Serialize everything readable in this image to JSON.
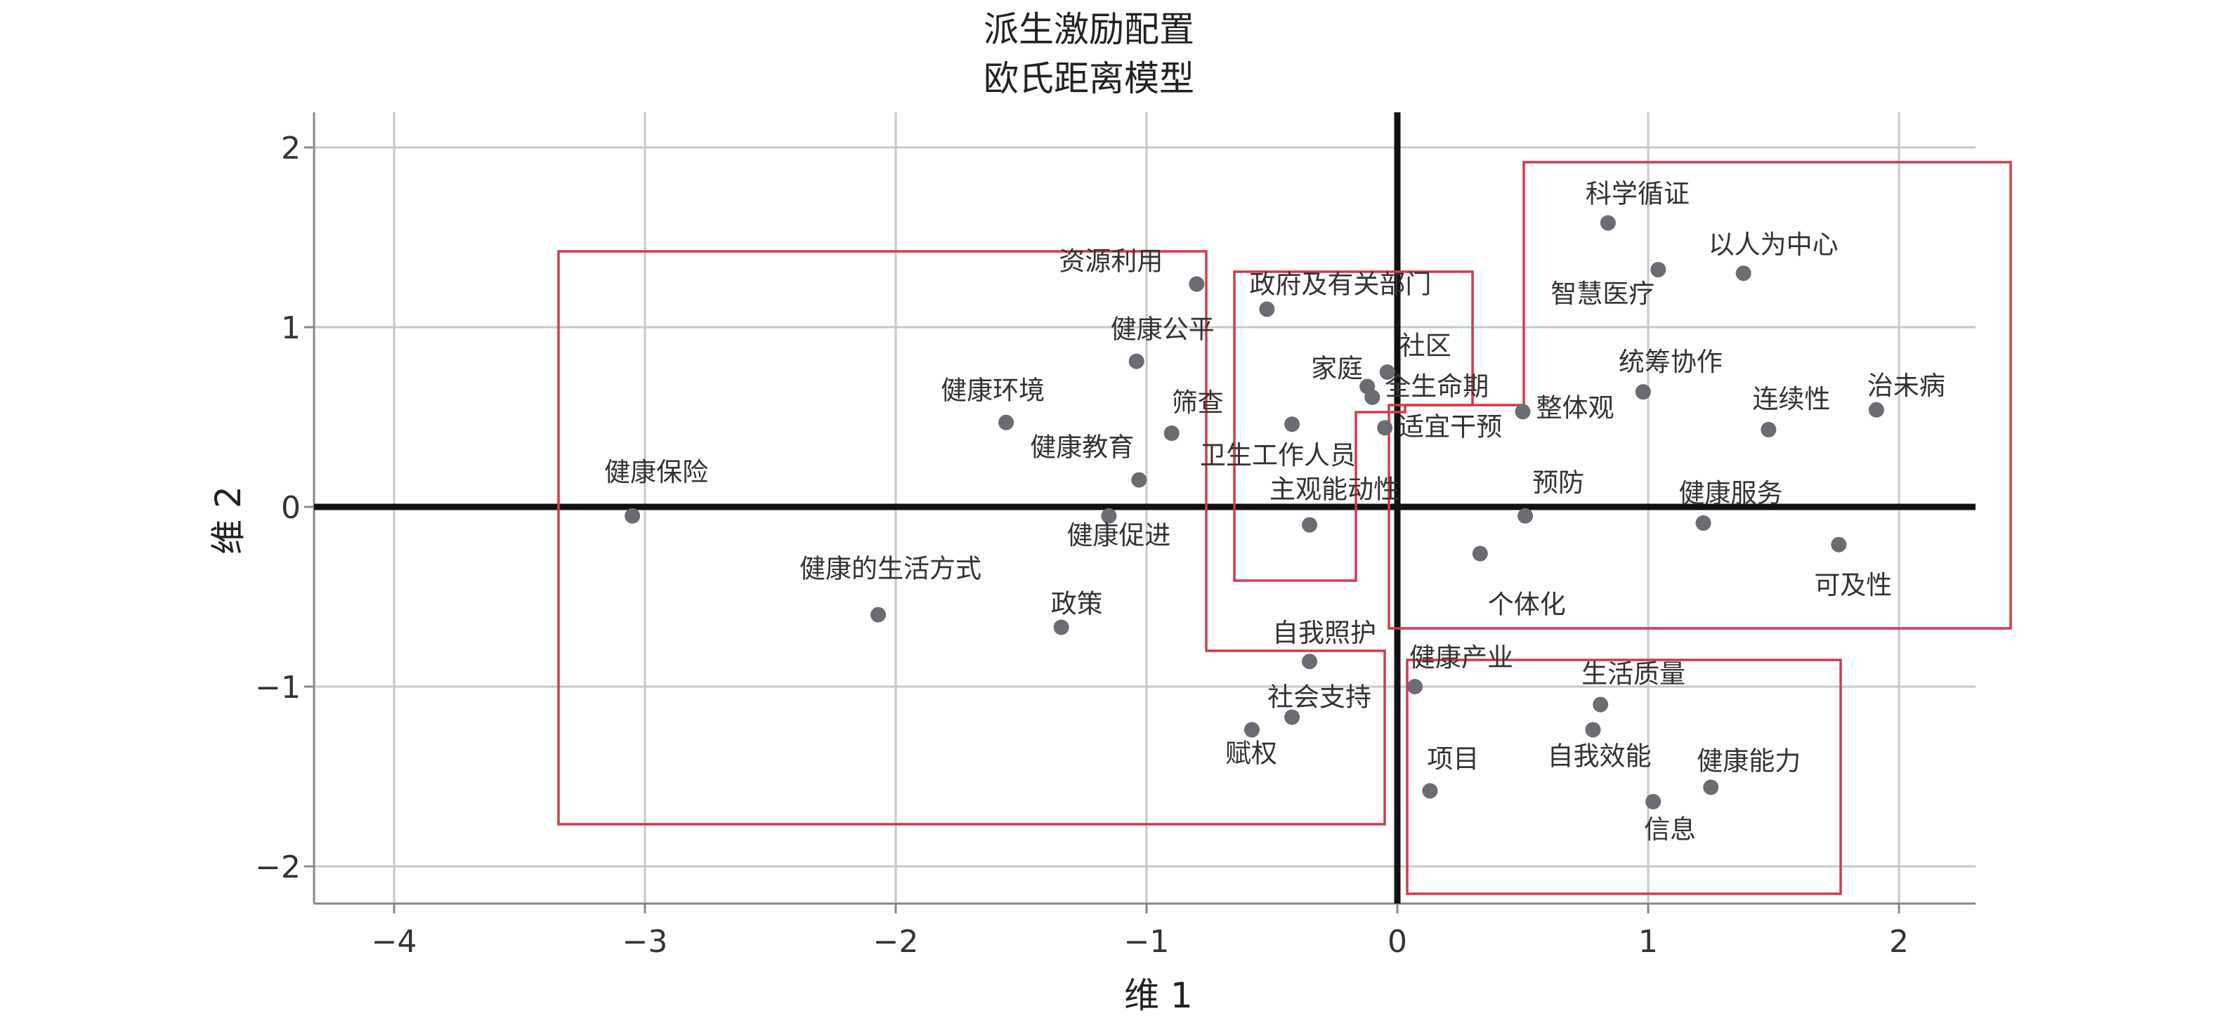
{
  "chart_data": {
    "type": "scatter",
    "title": "派生激励配置",
    "subtitle": "欧氏距离模型",
    "xlabel": "维 1",
    "ylabel": "维 2",
    "xlim": [
      -4.35,
      2.35
    ],
    "ylim": [
      -2.22,
      2.22
    ],
    "xticks": [
      -4,
      -3,
      -2,
      -1,
      0,
      1,
      2
    ],
    "yticks": [
      -2,
      -1,
      0,
      1,
      2
    ],
    "tick_minus": "−",
    "grid": true,
    "point_color": "#6b6b73",
    "box_color": "#d23a48",
    "points": [
      {
        "label": "健康保险",
        "x": -3.05,
        "y": -0.05
      },
      {
        "label": "健康的生活方式",
        "x": -2.07,
        "y": -0.6
      },
      {
        "label": "政策",
        "x": -1.34,
        "y": -0.67
      },
      {
        "label": "健康促进",
        "x": -1.15,
        "y": -0.05
      },
      {
        "label": "健康环境",
        "x": -1.56,
        "y": 0.47
      },
      {
        "label": "健康教育",
        "x": -1.03,
        "y": 0.15
      },
      {
        "label": "健康公平",
        "x": -1.04,
        "y": 0.81
      },
      {
        "label": "筛查",
        "x": -0.9,
        "y": 0.41
      },
      {
        "label": "资源利用",
        "x": -0.8,
        "y": 1.24
      },
      {
        "label": "政府及有关部门",
        "x": -0.52,
        "y": 1.1
      },
      {
        "label": "卫生工作人员",
        "x": -0.42,
        "y": 0.46
      },
      {
        "label": "主观能动性",
        "x": -0.35,
        "y": -0.1
      },
      {
        "label": "家庭",
        "x": -0.12,
        "y": 0.67
      },
      {
        "label": "社区",
        "x": -0.04,
        "y": 0.75
      },
      {
        "label": "全生命期",
        "x": -0.1,
        "y": 0.61
      },
      {
        "label": "适宜干预",
        "x": -0.05,
        "y": 0.44
      },
      {
        "label": "整体观",
        "x": 0.5,
        "y": 0.53
      },
      {
        "label": "预防",
        "x": 0.51,
        "y": -0.05
      },
      {
        "label": "个体化",
        "x": 0.33,
        "y": -0.26
      },
      {
        "label": "科学循证",
        "x": 0.84,
        "y": 1.58
      },
      {
        "label": "智慧医疗",
        "x": 1.04,
        "y": 1.32
      },
      {
        "label": "以人为中心",
        "x": 1.38,
        "y": 1.3
      },
      {
        "label": "统筹协作",
        "x": 0.98,
        "y": 0.64
      },
      {
        "label": "连续性",
        "x": 1.48,
        "y": 0.43
      },
      {
        "label": "治未病",
        "x": 1.91,
        "y": 0.54
      },
      {
        "label": "健康服务",
        "x": 1.22,
        "y": -0.09
      },
      {
        "label": "可及性",
        "x": 1.76,
        "y": -0.21
      },
      {
        "label": "自我照护",
        "x": -0.35,
        "y": -0.86
      },
      {
        "label": "社会支持",
        "x": -0.42,
        "y": -1.17
      },
      {
        "label": "赋权",
        "x": -0.58,
        "y": -1.24
      },
      {
        "label": "健康产业",
        "x": 0.07,
        "y": -1.0
      },
      {
        "label": "项目",
        "x": 0.13,
        "y": -1.58
      },
      {
        "label": "生活质量",
        "x": 0.81,
        "y": -1.1
      },
      {
        "label": "自我效能",
        "x": 0.78,
        "y": -1.24
      },
      {
        "label": "健康能力",
        "x": 1.25,
        "y": -1.56
      },
      {
        "label": "信息",
        "x": 1.02,
        "y": -1.64
      }
    ]
  }
}
